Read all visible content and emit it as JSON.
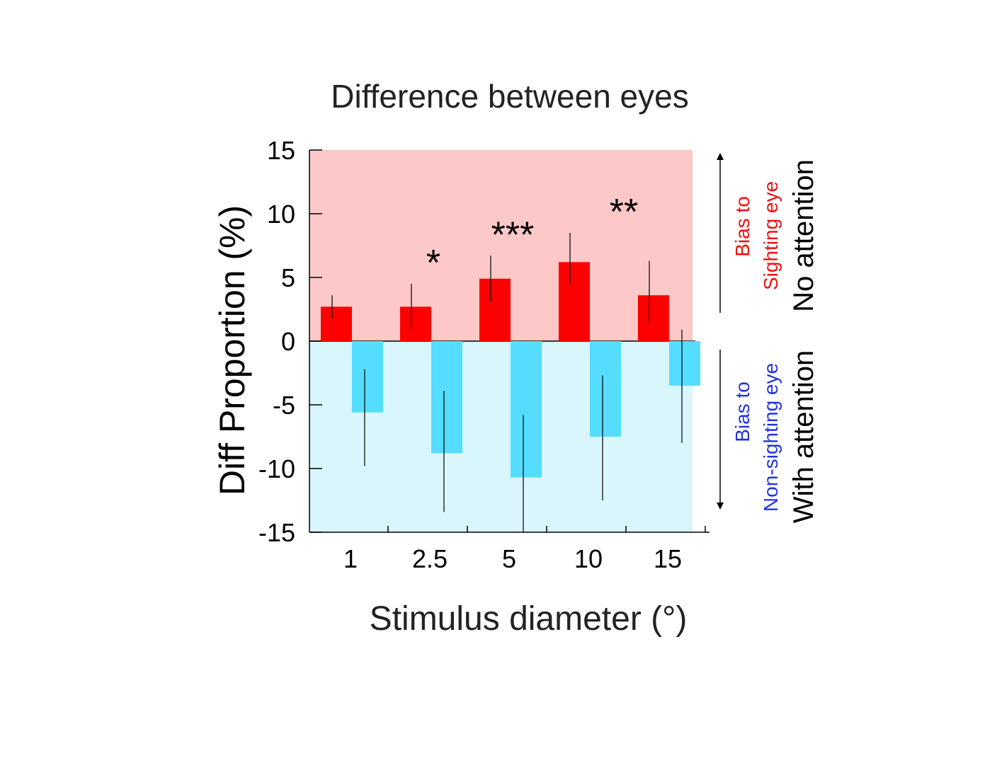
{
  "chart_data": {
    "type": "bar",
    "title": "Difference between eyes",
    "xlabel": "Stimulus diameter (°)",
    "ylabel": "Diff Proportion (%)",
    "ylim": [
      -15,
      15
    ],
    "yticks": [
      15,
      10,
      5,
      0,
      -5,
      -10,
      -15
    ],
    "ytick_labels": [
      "15",
      "10",
      "5",
      "0",
      "-5",
      "-10",
      "-15"
    ],
    "categories": [
      "1",
      "2.5",
      "5",
      "10",
      "15"
    ],
    "series": [
      {
        "name": "No attention",
        "color": "#ff0000",
        "values": [
          2.7,
          2.7,
          4.9,
          6.2,
          3.6
        ],
        "err_low": [
          1.8,
          0.9,
          3.1,
          4.5,
          1.4
        ],
        "err_high": [
          3.6,
          4.5,
          6.7,
          8.5,
          6.3
        ]
      },
      {
        "name": "With attention",
        "color": "#55ddff",
        "values": [
          -5.6,
          -8.8,
          -10.7,
          -7.5,
          -3.5
        ],
        "err_low": [
          -9.8,
          -13.4,
          -15,
          -12.5,
          -8.0
        ],
        "err_high": [
          -2.2,
          -3.9,
          -5.8,
          -2.7,
          0.9
        ]
      }
    ],
    "significance": [
      "",
      "*",
      "***",
      "**",
      ""
    ],
    "regions": {
      "positive": {
        "color": "#fcc8c8",
        "label_line1": "Bias to",
        "label_line2": "Sighting eye",
        "label_color": "#ee1111",
        "condition": "No attention"
      },
      "negative": {
        "color": "#d8f6fb",
        "label_line1": "Bias to",
        "label_line2": "Non-sighting eye",
        "label_color": "#2233dd",
        "condition": "With attention"
      }
    },
    "grid": false,
    "legend": "none"
  }
}
